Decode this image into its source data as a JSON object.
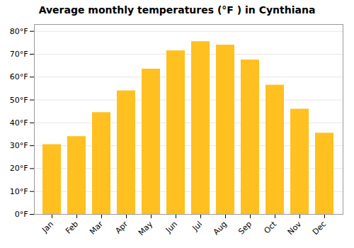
{
  "chart_data": {
    "type": "bar",
    "title": "Average monthly temperatures (°F ) in Cynthiana",
    "categories": [
      "Jan",
      "Feb",
      "Mar",
      "Apr",
      "May",
      "Jun",
      "Jul",
      "Aug",
      "Sep",
      "Oct",
      "Nov",
      "Dec"
    ],
    "values": [
      30.5,
      34.0,
      44.5,
      54.0,
      63.5,
      71.5,
      75.5,
      74.0,
      67.5,
      56.5,
      46.0,
      35.5
    ],
    "color": "#FFC020",
    "ylim": [
      0,
      83
    ],
    "yticks": [
      {
        "value": 0,
        "label": "0°F"
      },
      {
        "value": 10,
        "label": "10°F"
      },
      {
        "value": 20,
        "label": "20°F"
      },
      {
        "value": 30,
        "label": "30°F"
      },
      {
        "value": 40,
        "label": "40°F"
      },
      {
        "value": 50,
        "label": "50°F"
      },
      {
        "value": 60,
        "label": "60°F"
      },
      {
        "value": 70,
        "label": "70°F"
      },
      {
        "value": 80,
        "label": "80°F"
      }
    ],
    "grid": true
  }
}
